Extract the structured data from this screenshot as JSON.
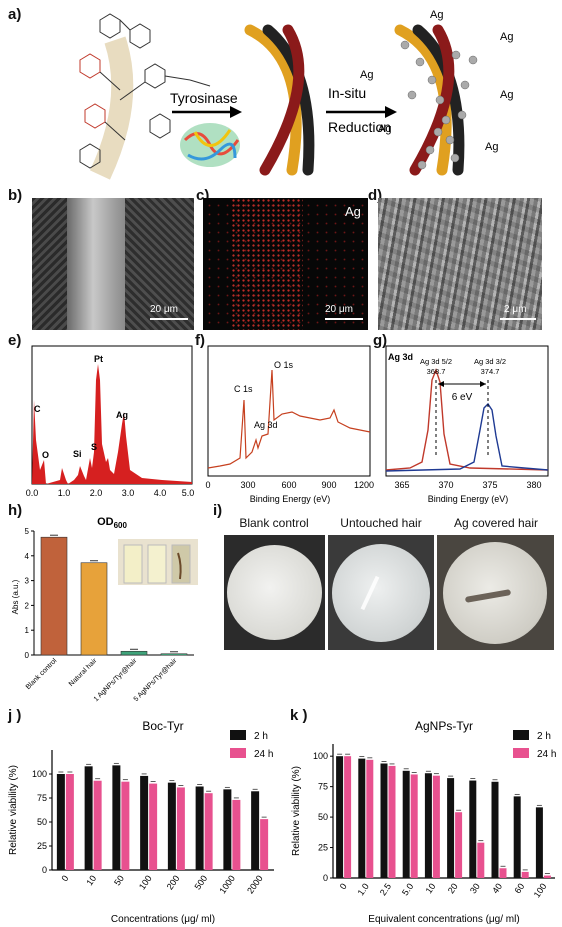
{
  "panel_labels": {
    "a": "a)",
    "b": "b)",
    "c": "c)",
    "d": "d)",
    "e": "e)",
    "f": "f)",
    "g": "g)",
    "h": "h)",
    "i": "i)",
    "j": "j )",
    "k": "k )"
  },
  "schematic": {
    "enzyme": "Tyrosinase",
    "step2_line1": "In-situ",
    "step2_line2": "Reduction",
    "ag": "Ag"
  },
  "micrographs": {
    "b_scale": "20 μm",
    "c_scale": "20 μm",
    "c_element": "Ag",
    "d_scale": "2 μm"
  },
  "eds": {
    "x_ticks": [
      "0.0",
      "1.0",
      "2.0",
      "3.0",
      "4.0",
      "5.0"
    ],
    "peaks": [
      {
        "label": "C"
      },
      {
        "label": "O"
      },
      {
        "label": "Pt"
      },
      {
        "label": "Si"
      },
      {
        "label": "S"
      },
      {
        "label": "Ag"
      }
    ]
  },
  "xps_survey": {
    "xlabel": "Binding Energy (eV)",
    "x_ticks": [
      "0",
      "300",
      "600",
      "900",
      "1200"
    ],
    "peaks": [
      "C 1s",
      "O 1s",
      "Ag 3d"
    ]
  },
  "xps_ag3d": {
    "title": "Ag 3d",
    "xlabel": "Binding Energy (eV)",
    "x_ticks": [
      "365",
      "370",
      "375",
      "380"
    ],
    "peak1_name": "Ag 3d 5/2",
    "peak1_value": "368.7",
    "peak2_name": "Ag 3d 3/2",
    "peak2_value": "374.7",
    "split": "6 eV",
    "colors": {
      "p1": "#c0392b",
      "p2": "#1f3a93"
    }
  },
  "od600": {
    "title_main": "OD",
    "title_sub": "600",
    "ylabel": "Abs (a.u.)",
    "y_ticks": [
      "0",
      "1",
      "2",
      "3",
      "4",
      "5"
    ],
    "colors": [
      "#c0623b",
      "#e7a23a",
      "#3fa37a",
      "#3fa37a"
    ]
  },
  "petri": {
    "labels": [
      "Blank control",
      "Untouched hair",
      "Ag covered hair"
    ]
  },
  "viability_legend": {
    "s1": "2 h",
    "s2": "24 h"
  },
  "chart_data": [
    {
      "type": "bar",
      "title": "OD600",
      "ylabel": "Abs (a.u.)",
      "ylim": [
        0,
        5
      ],
      "categories": [
        "Blank control",
        "Natural hair",
        "1 AgNPs/Tyr@hair",
        "5 AgNPs/Tyr@hair"
      ],
      "values": [
        4.75,
        3.72,
        0.15,
        0.05
      ]
    },
    {
      "type": "bar",
      "title": "Boc-Tyr",
      "xlabel": "Concentrations (μg/ ml)",
      "ylabel": "Relative viability (%)",
      "ylim": [
        0,
        125
      ],
      "y_ticks": [
        "0",
        "25",
        "50",
        "75",
        "100"
      ],
      "categories": [
        "0",
        "10",
        "50",
        "100",
        "200",
        "500",
        "1000",
        "2000"
      ],
      "series": [
        {
          "name": "2 h",
          "values": [
            100,
            108,
            109,
            98,
            91,
            87,
            84,
            82
          ]
        },
        {
          "name": "24 h",
          "values": [
            100,
            93,
            92,
            90,
            86,
            80,
            73,
            53
          ]
        }
      ],
      "colors": [
        "#111111",
        "#e8518f"
      ]
    },
    {
      "type": "bar",
      "title": "AgNPs-Tyr",
      "xlabel": "Equivalent concentrations (μg/ ml)",
      "ylabel": "Relative viability (%)",
      "ylim": [
        0,
        110
      ],
      "y_ticks": [
        "0",
        "25",
        "50",
        "75",
        "100"
      ],
      "categories": [
        "0",
        "1.0",
        "2.5",
        "5.0",
        "10",
        "20",
        "30",
        "40",
        "60",
        "100"
      ],
      "series": [
        {
          "name": "2 h",
          "values": [
            100,
            98,
            94,
            88,
            86,
            82,
            80,
            79,
            67,
            58
          ]
        },
        {
          "name": "24 h",
          "values": [
            100,
            97,
            92,
            85,
            84,
            54,
            29,
            8,
            5,
            2
          ]
        }
      ],
      "colors": [
        "#111111",
        "#e8518f"
      ]
    }
  ]
}
